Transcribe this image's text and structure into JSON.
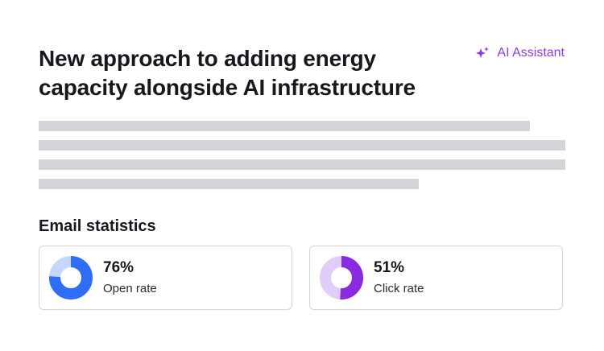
{
  "article": {
    "title": "New approach to adding energy capacity alongside AI infrastructure",
    "placeholder_line_widths_pct": [
      93.3,
      100,
      100,
      72.2
    ]
  },
  "assistant": {
    "label": "AI Assistant",
    "icon": "sparkles-icon",
    "color": "#8b3ce6"
  },
  "stats": {
    "title": "Email statistics",
    "items": [
      {
        "id": "open",
        "value_text": "76%",
        "label": "Open rate",
        "fraction": 0.76,
        "color": "#2f6df6",
        "track_color": "#c5d7fc"
      },
      {
        "id": "click",
        "value_text": "51%",
        "label": "Click rate",
        "fraction": 0.51,
        "color": "#8a2be2",
        "track_color": "#e0cdfa"
      }
    ]
  }
}
